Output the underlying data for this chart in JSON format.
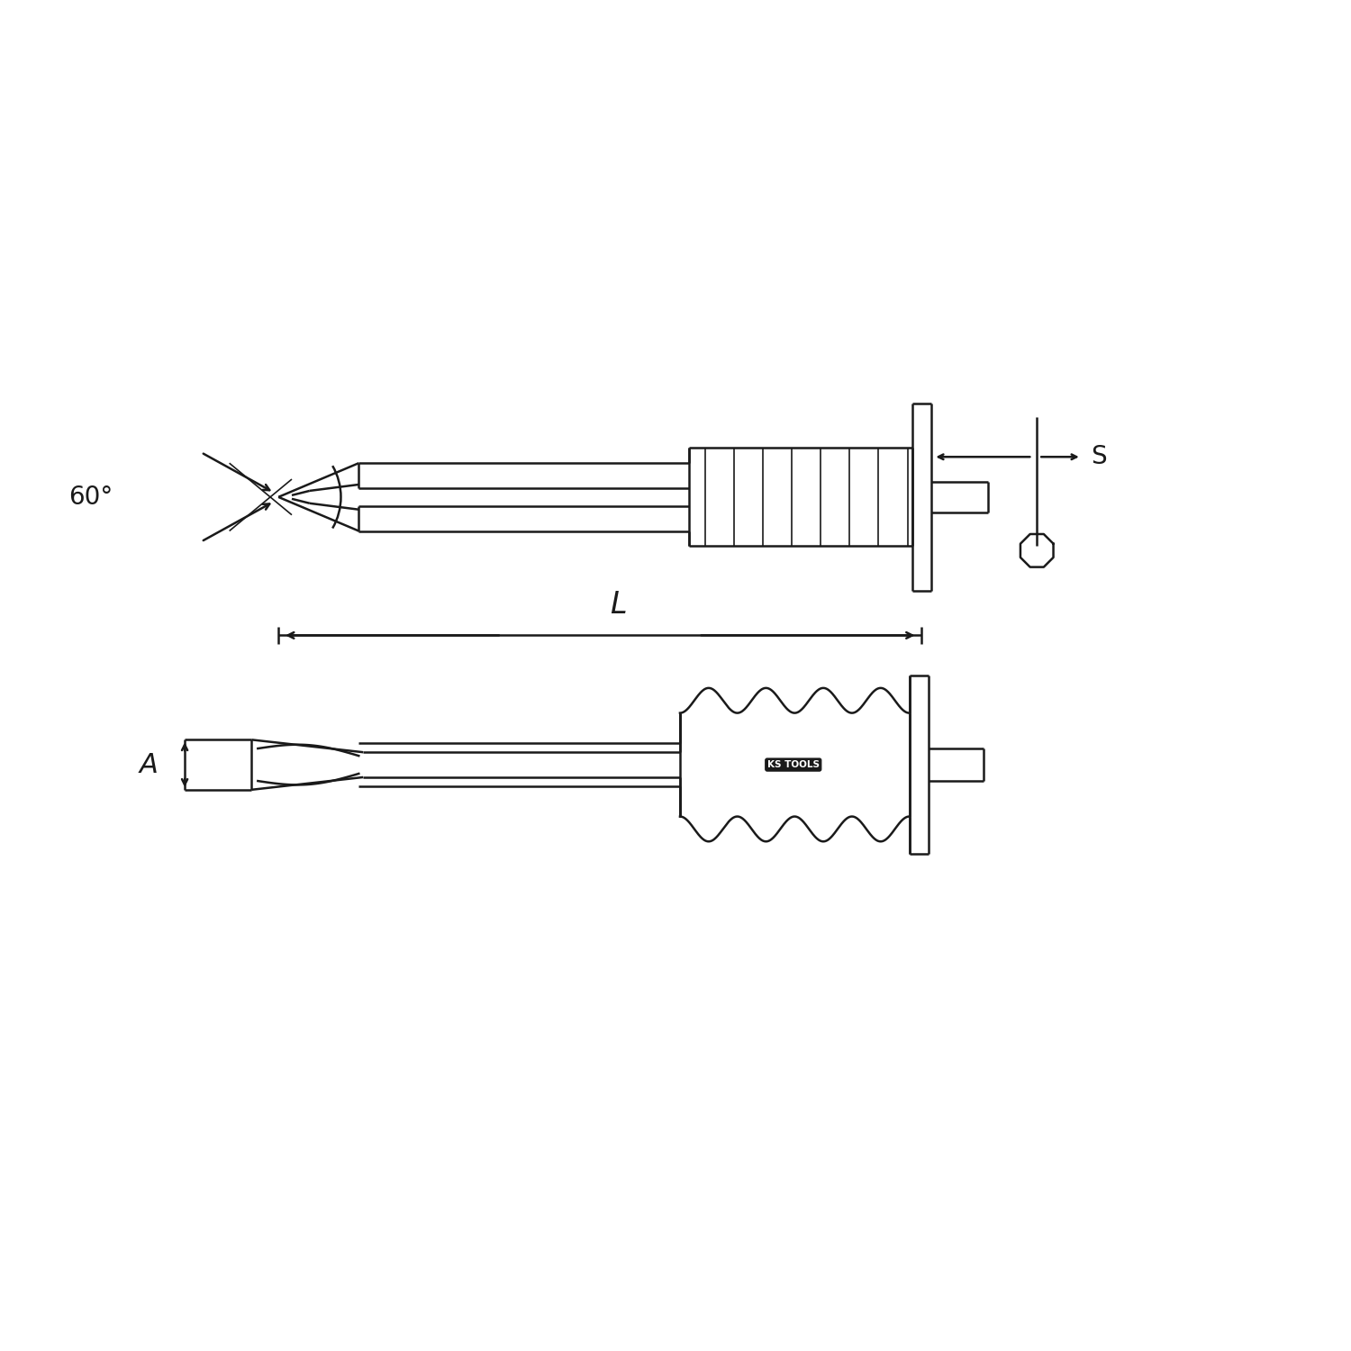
{
  "bg_color": "#ffffff",
  "line_color": "#1a1a1a",
  "lw": 1.8,
  "lw_thin": 1.2,
  "fig_size": [
    15,
    15
  ],
  "dpi": 100,
  "label_60": "60°",
  "label_L": "L",
  "label_S": "S",
  "label_A": "A",
  "ks_tools_text": "KS TOOLS"
}
